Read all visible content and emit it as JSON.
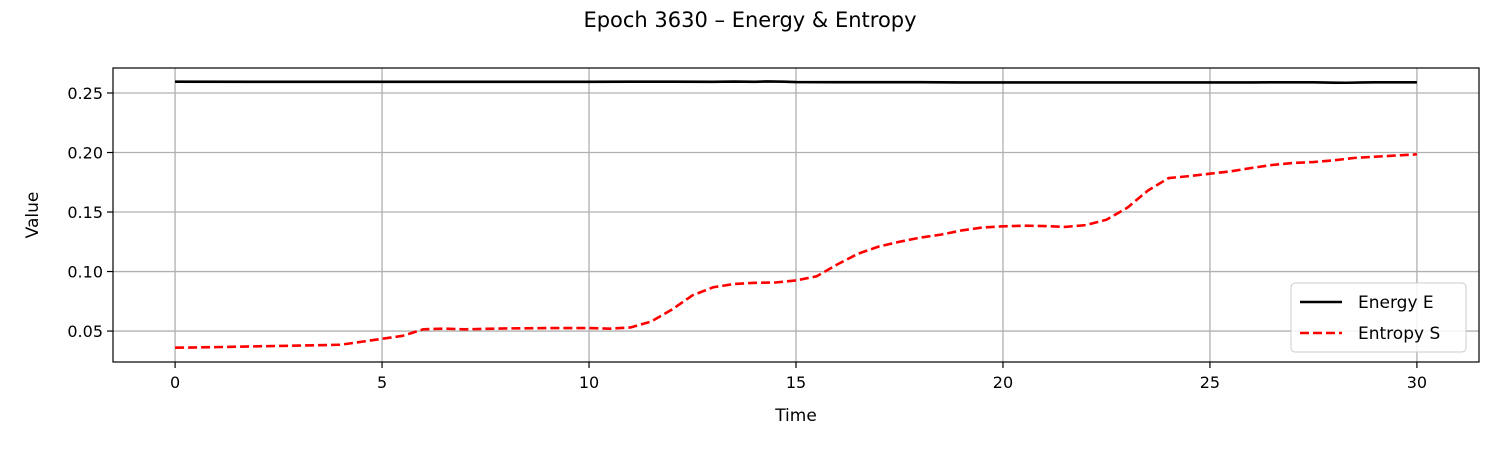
{
  "chart_data": {
    "type": "line",
    "title": "Epoch 3630 – Energy & Entropy",
    "xlabel": "Time",
    "ylabel": "Value",
    "xlim": [
      -1.5,
      31.5
    ],
    "ylim": [
      0.024,
      0.271
    ],
    "xticks": [
      0,
      5,
      10,
      15,
      20,
      25,
      30
    ],
    "xtick_labels": [
      "0",
      "5",
      "10",
      "15",
      "20",
      "25",
      "30"
    ],
    "yticks": [
      0.05,
      0.1,
      0.15,
      0.2,
      0.25
    ],
    "ytick_labels": [
      "0.05",
      "0.10",
      "0.15",
      "0.20",
      "0.25"
    ],
    "grid": true,
    "legend_position": "lower-right",
    "series": [
      {
        "name": "Energy E",
        "color": "#000000",
        "style": "solid",
        "x": [
          0,
          2,
          4,
          6,
          8,
          10,
          11,
          12,
          13,
          13.5,
          14,
          14.3,
          14.7,
          15,
          16,
          17,
          18,
          19,
          20,
          21,
          22,
          23,
          24,
          25,
          26,
          27,
          27.5,
          28,
          28.3,
          28.7,
          29,
          30
        ],
        "y": [
          0.2595,
          0.2594,
          0.2594,
          0.2594,
          0.2594,
          0.2594,
          0.2595,
          0.2595,
          0.2594,
          0.2596,
          0.2594,
          0.2597,
          0.2595,
          0.2592,
          0.2591,
          0.2591,
          0.2591,
          0.2589,
          0.2589,
          0.2589,
          0.2589,
          0.2589,
          0.2589,
          0.2589,
          0.2589,
          0.259,
          0.259,
          0.2587,
          0.2586,
          0.2589,
          0.259,
          0.259
        ]
      },
      {
        "name": "Entropy S",
        "color": "#ff0000",
        "style": "dashed",
        "x": [
          0,
          1,
          2,
          3,
          4,
          5,
          5.5,
          6,
          6.5,
          7,
          8,
          9,
          10,
          10.5,
          11,
          11.5,
          12,
          12.5,
          13,
          13.5,
          14,
          14.5,
          15,
          15.5,
          16,
          16.5,
          17,
          17.5,
          18,
          18.5,
          19,
          19.5,
          20,
          20.5,
          21,
          21.5,
          22,
          22.5,
          23,
          23.5,
          24,
          24.5,
          25,
          25.5,
          26,
          26.5,
          27,
          27.5,
          28,
          28.5,
          29,
          29.5,
          30
        ],
        "y": [
          0.036,
          0.0365,
          0.0372,
          0.0378,
          0.0385,
          0.0435,
          0.046,
          0.0515,
          0.052,
          0.0515,
          0.0522,
          0.0525,
          0.0525,
          0.052,
          0.053,
          0.058,
          0.068,
          0.08,
          0.0868,
          0.0895,
          0.0905,
          0.0908,
          0.0925,
          0.096,
          0.106,
          0.115,
          0.121,
          0.125,
          0.1285,
          0.131,
          0.1345,
          0.137,
          0.138,
          0.1385,
          0.1382,
          0.1375,
          0.139,
          0.1435,
          0.1535,
          0.168,
          0.1785,
          0.1802,
          0.1822,
          0.1842,
          0.187,
          0.1895,
          0.1912,
          0.192,
          0.1935,
          0.1955,
          0.1965,
          0.1975,
          0.1985
        ]
      }
    ]
  }
}
